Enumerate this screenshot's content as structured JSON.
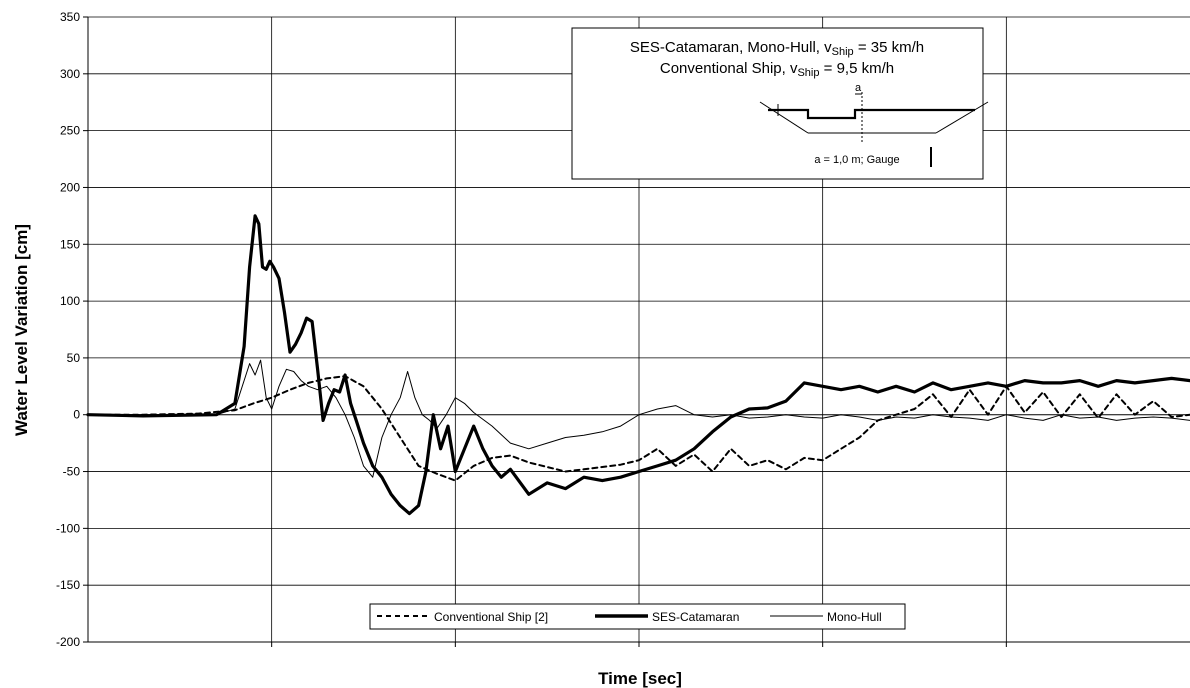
{
  "chart_data": {
    "type": "line",
    "title": "",
    "xlabel": "Time [sec]",
    "ylabel": "Water Level Variation [cm]",
    "ylim": [
      -200,
      350
    ],
    "yticks": [
      350,
      300,
      250,
      200,
      150,
      100,
      50,
      0,
      -50,
      -100,
      -150,
      -200
    ],
    "xlim": [
      0,
      600
    ],
    "x_gridlines": [
      100,
      200,
      300,
      400,
      500
    ],
    "grid": true,
    "legend_position": "bottom-center",
    "annotation": {
      "line1_prefix": "SES-Catamaran, Mono-Hull, v",
      "line1_sub": "Ship",
      "line1_suffix": " = 35 km/h",
      "line2_prefix": "Conventional Ship, v",
      "line2_sub": "Ship",
      "line2_suffix": " = 9,5 km/h",
      "sketch_letter": "a",
      "sketch_caption": "a = 1,0 m; Gauge"
    },
    "series": [
      {
        "name": "Conventional Ship [2]",
        "style": "dashed",
        "color": "#000000",
        "x": [
          0,
          30,
          60,
          80,
          90,
          100,
          110,
          120,
          130,
          140,
          150,
          160,
          170,
          180,
          190,
          200,
          210,
          220,
          230,
          240,
          250,
          260,
          270,
          280,
          290,
          300,
          310,
          320,
          330,
          340,
          350,
          360,
          370,
          380,
          390,
          400,
          410,
          420,
          430,
          440,
          450,
          460,
          470,
          480,
          490,
          500,
          510,
          520,
          530,
          540,
          550,
          560,
          570,
          580,
          590,
          600
        ],
        "values": [
          0,
          0,
          1,
          4,
          10,
          15,
          22,
          28,
          32,
          34,
          25,
          5,
          -20,
          -45,
          -52,
          -58,
          -45,
          -38,
          -36,
          -42,
          -46,
          -50,
          -48,
          -46,
          -44,
          -40,
          -30,
          -45,
          -35,
          -50,
          -30,
          -45,
          -40,
          -48,
          -38,
          -40,
          -30,
          -20,
          -5,
          0,
          5,
          18,
          -2,
          22,
          0,
          25,
          2,
          20,
          -2,
          18,
          -3,
          18,
          0,
          12,
          -2,
          0
        ]
      },
      {
        "name": "SES-Catamaran",
        "style": "thick",
        "color": "#000000",
        "x": [
          0,
          30,
          70,
          80,
          85,
          88,
          91,
          93,
          95,
          97,
          99,
          101,
          104,
          107,
          110,
          113,
          116,
          119,
          122,
          125,
          128,
          131,
          134,
          137,
          140,
          143,
          146,
          150,
          155,
          160,
          165,
          170,
          175,
          180,
          184,
          188,
          192,
          196,
          200,
          205,
          210,
          215,
          220,
          225,
          230,
          240,
          250,
          260,
          270,
          280,
          290,
          300,
          310,
          320,
          330,
          340,
          350,
          360,
          370,
          380,
          390,
          400,
          410,
          420,
          430,
          440,
          450,
          460,
          470,
          480,
          490,
          500,
          510,
          520,
          530,
          540,
          550,
          560,
          570,
          580,
          590,
          600
        ],
        "values": [
          0,
          -1,
          0,
          10,
          60,
          130,
          175,
          168,
          130,
          128,
          135,
          130,
          120,
          90,
          55,
          62,
          72,
          85,
          82,
          40,
          -5,
          10,
          22,
          20,
          35,
          10,
          -5,
          -25,
          -45,
          -55,
          -70,
          -80,
          -87,
          -80,
          -50,
          0,
          -30,
          -10,
          -50,
          -30,
          -10,
          -30,
          -45,
          -55,
          -48,
          -70,
          -60,
          -65,
          -55,
          -58,
          -55,
          -50,
          -45,
          -40,
          -30,
          -15,
          -2,
          5,
          6,
          12,
          28,
          25,
          22,
          25,
          20,
          25,
          20,
          28,
          22,
          25,
          28,
          25,
          30,
          28,
          28,
          30,
          25,
          30,
          28,
          30,
          32,
          30
        ]
      },
      {
        "name": "Mono-Hull",
        "style": "thin",
        "color": "#000000",
        "x": [
          0,
          30,
          70,
          80,
          85,
          88,
          91,
          94,
          97,
          100,
          104,
          108,
          112,
          116,
          120,
          125,
          130,
          135,
          140,
          145,
          150,
          155,
          160,
          165,
          170,
          174,
          178,
          182,
          186,
          190,
          195,
          200,
          205,
          210,
          220,
          230,
          240,
          250,
          260,
          270,
          280,
          290,
          300,
          310,
          320,
          330,
          340,
          350,
          360,
          370,
          380,
          390,
          400,
          410,
          420,
          430,
          440,
          450,
          460,
          470,
          480,
          490,
          500,
          510,
          520,
          530,
          540,
          550,
          560,
          570,
          580,
          590,
          600
        ],
        "values": [
          0,
          0,
          0,
          5,
          30,
          45,
          35,
          48,
          15,
          5,
          25,
          40,
          38,
          30,
          25,
          22,
          25,
          15,
          0,
          -20,
          -45,
          -55,
          -20,
          0,
          15,
          38,
          15,
          0,
          -5,
          -12,
          0,
          15,
          10,
          2,
          -10,
          -25,
          -30,
          -25,
          -20,
          -18,
          -15,
          -10,
          0,
          5,
          8,
          0,
          -2,
          0,
          -3,
          -2,
          0,
          -2,
          -3,
          0,
          -2,
          -5,
          -2,
          -3,
          0,
          -2,
          -3,
          -5,
          0,
          -3,
          -5,
          0,
          -3,
          -2,
          -5,
          -3,
          -2,
          -3,
          -5
        ]
      }
    ]
  }
}
